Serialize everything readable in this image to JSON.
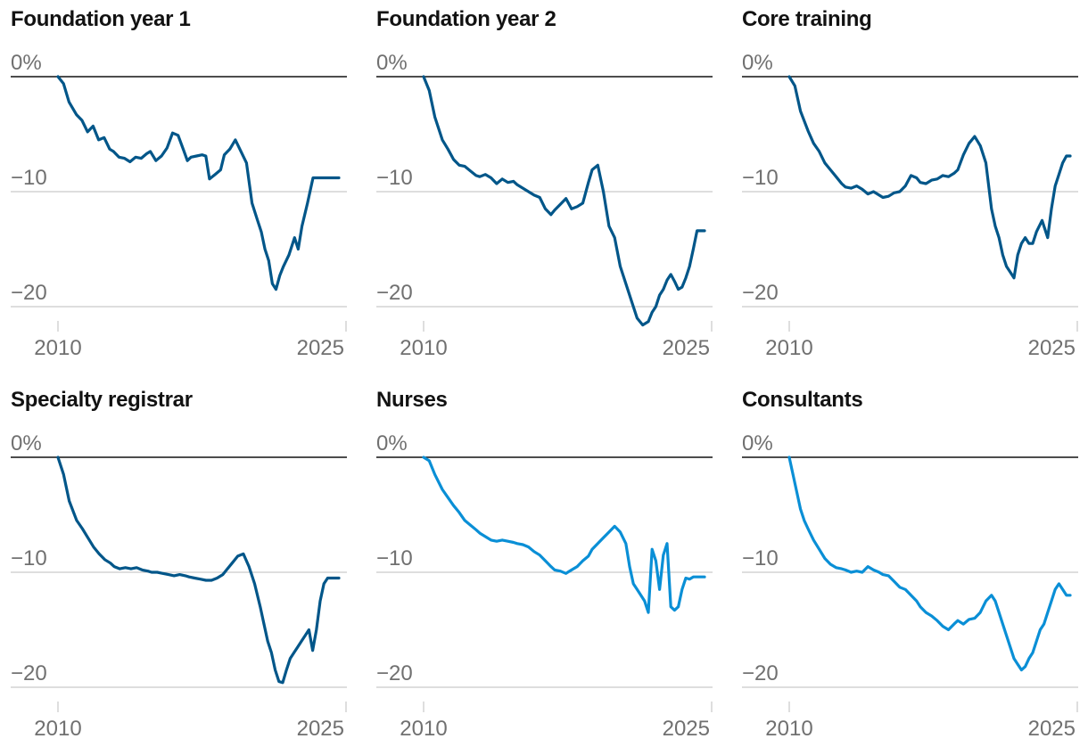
{
  "colors": {
    "dark": "#005689",
    "light": "#0a8fd6",
    "grid": "#bdbdbd",
    "zero": "#121212",
    "text": "#707070",
    "title": "#121212"
  },
  "chart_data": [
    {
      "type": "line",
      "title": "Foundation year 1",
      "color": "dark",
      "ylim": [
        -22,
        0
      ],
      "y_ticks": [
        {
          "v": 0,
          "label": "0%"
        },
        {
          "v": -10,
          "label": "−10"
        },
        {
          "v": -20,
          "label": "−20"
        }
      ],
      "x_ticks": [
        {
          "v": 2010,
          "label": "2010"
        },
        {
          "v": 2025,
          "label": "2025"
        }
      ],
      "xlim": [
        2010,
        2025.3
      ],
      "x": [
        2010.0,
        2010.3,
        2010.6,
        2011.0,
        2011.3,
        2011.6,
        2011.9,
        2012.2,
        2012.5,
        2012.8,
        2013.0,
        2013.3,
        2013.6,
        2013.9,
        2014.2,
        2014.5,
        2014.8,
        2015.0,
        2015.3,
        2015.6,
        2015.9,
        2016.2,
        2016.5,
        2016.8,
        2017.0,
        2017.2,
        2017.5,
        2017.8,
        2018.0,
        2018.2,
        2018.5,
        2018.8,
        2019.0,
        2019.3,
        2019.6,
        2019.9,
        2020.2,
        2020.5,
        2020.8,
        2021.0,
        2021.2,
        2021.4,
        2021.6,
        2021.8,
        2022.0,
        2022.2,
        2022.5,
        2022.8,
        2023.0,
        2023.2,
        2023.5,
        2023.8,
        2024.0,
        2024.2,
        2024.4,
        2024.6,
        2024.8,
        2025.0,
        2025.2
      ],
      "values": [
        0,
        -0.6,
        -2.2,
        -3.3,
        -3.8,
        -4.8,
        -4.3,
        -5.5,
        -5.3,
        -6.3,
        -6.5,
        -7.0,
        -7.1,
        -7.4,
        -7.0,
        -7.1,
        -6.7,
        -6.5,
        -7.3,
        -6.9,
        -6.2,
        -4.9,
        -5.1,
        -6.4,
        -7.3,
        -7.0,
        -6.9,
        -6.8,
        -6.9,
        -8.9,
        -8.5,
        -8.1,
        -6.8,
        -6.3,
        -5.5,
        -6.5,
        -7.5,
        -11.0,
        -12.5,
        -13.5,
        -15.0,
        -16.0,
        -18.0,
        -18.5,
        -17.3,
        -16.5,
        -15.5,
        -14.0,
        -15.0,
        -13.0,
        -11.0,
        -8.8,
        -8.8,
        -8.8,
        -8.8,
        -8.8,
        -8.8,
        -8.8,
        -8.8
      ]
    },
    {
      "type": "line",
      "title": "Foundation year 2",
      "color": "dark",
      "ylim": [
        -22,
        0
      ],
      "y_ticks": [
        {
          "v": 0,
          "label": "0%"
        },
        {
          "v": -10,
          "label": "−10"
        },
        {
          "v": -20,
          "label": "−20"
        }
      ],
      "x_ticks": [
        {
          "v": 2010,
          "label": "2010"
        },
        {
          "v": 2025,
          "label": "2025"
        }
      ],
      "xlim": [
        2010,
        2025.3
      ],
      "x": [
        2010.0,
        2010.3,
        2010.6,
        2011.0,
        2011.3,
        2011.6,
        2011.9,
        2012.2,
        2012.5,
        2012.8,
        2013.0,
        2013.3,
        2013.6,
        2013.9,
        2014.2,
        2014.5,
        2014.8,
        2015.0,
        2015.3,
        2015.6,
        2015.9,
        2016.2,
        2016.5,
        2016.8,
        2017.0,
        2017.3,
        2017.6,
        2017.9,
        2018.2,
        2018.5,
        2018.8,
        2019.0,
        2019.3,
        2019.6,
        2019.9,
        2020.2,
        2020.5,
        2020.8,
        2021.1,
        2021.4,
        2021.7,
        2022.0,
        2022.2,
        2022.4,
        2022.6,
        2022.8,
        2023.0,
        2023.2,
        2023.4,
        2023.6,
        2023.8,
        2024.0,
        2024.2,
        2024.4,
        2024.6,
        2024.8,
        2025.0
      ],
      "values": [
        0,
        -1.2,
        -3.5,
        -5.5,
        -6.3,
        -7.2,
        -7.7,
        -7.8,
        -8.2,
        -8.6,
        -8.7,
        -8.5,
        -8.8,
        -9.3,
        -8.9,
        -9.2,
        -9.1,
        -9.4,
        -9.7,
        -10.0,
        -10.3,
        -10.5,
        -11.5,
        -12.0,
        -11.6,
        -11.1,
        -10.6,
        -11.5,
        -11.3,
        -11.0,
        -9.2,
        -8.1,
        -7.7,
        -10.0,
        -13.0,
        -14.0,
        -16.5,
        -18.0,
        -19.5,
        -21.0,
        -21.6,
        -21.3,
        -20.5,
        -20.0,
        -19.0,
        -18.5,
        -17.7,
        -17.2,
        -17.8,
        -18.5,
        -18.3,
        -17.5,
        -16.5,
        -15.0,
        -13.4,
        -13.4,
        -13.4
      ]
    },
    {
      "type": "line",
      "title": "Core training",
      "color": "dark",
      "ylim": [
        -22,
        0
      ],
      "y_ticks": [
        {
          "v": 0,
          "label": "0%"
        },
        {
          "v": -10,
          "label": "−10"
        },
        {
          "v": -20,
          "label": "−20"
        }
      ],
      "x_ticks": [
        {
          "v": 2010,
          "label": "2010"
        },
        {
          "v": 2025,
          "label": "2025"
        }
      ],
      "xlim": [
        2010,
        2025.3
      ],
      "x": [
        2010.0,
        2010.3,
        2010.6,
        2011.0,
        2011.3,
        2011.6,
        2011.9,
        2012.2,
        2012.5,
        2012.8,
        2013.0,
        2013.3,
        2013.6,
        2013.9,
        2014.2,
        2014.5,
        2014.8,
        2015.0,
        2015.3,
        2015.6,
        2015.9,
        2016.2,
        2016.5,
        2016.8,
        2017.0,
        2017.3,
        2017.6,
        2017.9,
        2018.2,
        2018.5,
        2018.8,
        2019.0,
        2019.3,
        2019.6,
        2019.9,
        2020.2,
        2020.5,
        2020.8,
        2021.0,
        2021.2,
        2021.4,
        2021.6,
        2021.8,
        2022.0,
        2022.2,
        2022.4,
        2022.6,
        2022.8,
        2023.0,
        2023.2,
        2023.5,
        2023.8,
        2024.0,
        2024.2,
        2024.4,
        2024.6,
        2024.8,
        2025.0
      ],
      "values": [
        0,
        -0.8,
        -3.0,
        -4.7,
        -5.8,
        -6.5,
        -7.5,
        -8.1,
        -8.7,
        -9.3,
        -9.6,
        -9.7,
        -9.5,
        -9.8,
        -10.2,
        -10.0,
        -10.3,
        -10.5,
        -10.4,
        -10.1,
        -10.0,
        -9.5,
        -8.6,
        -8.8,
        -9.2,
        -9.3,
        -9.0,
        -8.9,
        -8.6,
        -8.7,
        -8.4,
        -8.1,
        -6.8,
        -5.8,
        -5.2,
        -6.0,
        -7.5,
        -11.5,
        -13.0,
        -14.0,
        -15.5,
        -16.5,
        -17.0,
        -17.5,
        -15.5,
        -14.5,
        -14.0,
        -14.5,
        -14.5,
        -13.5,
        -12.5,
        -14.0,
        -11.5,
        -9.5,
        -8.5,
        -7.5,
        -6.9,
        -6.9
      ]
    },
    {
      "type": "line",
      "title": "Specialty registrar",
      "color": "dark",
      "ylim": [
        -22,
        0
      ],
      "y_ticks": [
        {
          "v": 0,
          "label": "0%"
        },
        {
          "v": -10,
          "label": "−10"
        },
        {
          "v": -20,
          "label": "−20"
        }
      ],
      "x_ticks": [
        {
          "v": 2010,
          "label": "2010"
        },
        {
          "v": 2025,
          "label": "2025"
        }
      ],
      "xlim": [
        2010,
        2025.3
      ],
      "x": [
        2010.0,
        2010.3,
        2010.6,
        2011.0,
        2011.3,
        2011.6,
        2011.9,
        2012.2,
        2012.5,
        2012.8,
        2013.0,
        2013.3,
        2013.6,
        2013.9,
        2014.2,
        2014.5,
        2014.8,
        2015.0,
        2015.3,
        2015.6,
        2015.9,
        2016.2,
        2016.5,
        2016.8,
        2017.0,
        2017.3,
        2017.6,
        2017.9,
        2018.2,
        2018.5,
        2018.8,
        2019.0,
        2019.3,
        2019.6,
        2019.9,
        2020.2,
        2020.5,
        2020.8,
        2021.0,
        2021.2,
        2021.4,
        2021.6,
        2021.8,
        2022.0,
        2022.2,
        2022.4,
        2022.6,
        2022.8,
        2023.0,
        2023.2,
        2023.4,
        2023.6,
        2023.8,
        2024.0,
        2024.2,
        2024.4,
        2024.6,
        2024.8,
        2025.0
      ],
      "values": [
        0,
        -1.5,
        -3.8,
        -5.5,
        -6.2,
        -7.0,
        -7.8,
        -8.4,
        -8.9,
        -9.2,
        -9.5,
        -9.7,
        -9.6,
        -9.7,
        -9.6,
        -9.8,
        -9.9,
        -10.0,
        -10.0,
        -10.1,
        -10.2,
        -10.3,
        -10.2,
        -10.3,
        -10.4,
        -10.5,
        -10.6,
        -10.7,
        -10.7,
        -10.5,
        -10.2,
        -9.8,
        -9.2,
        -8.6,
        -8.4,
        -9.5,
        -11.0,
        -13.0,
        -14.5,
        -16.0,
        -17.0,
        -18.5,
        -19.5,
        -19.6,
        -18.5,
        -17.5,
        -17.0,
        -16.5,
        -16.0,
        -15.5,
        -15.0,
        -16.8,
        -15.0,
        -12.5,
        -11.0,
        -10.5,
        -10.5,
        -10.5,
        -10.5
      ]
    },
    {
      "type": "line",
      "title": "Nurses",
      "color": "light",
      "ylim": [
        -22,
        0
      ],
      "y_ticks": [
        {
          "v": 0,
          "label": "0%"
        },
        {
          "v": -10,
          "label": "−10"
        },
        {
          "v": -20,
          "label": "−20"
        }
      ],
      "x_ticks": [
        {
          "v": 2010,
          "label": "2010"
        },
        {
          "v": 2025,
          "label": "2025"
        }
      ],
      "xlim": [
        2010,
        2025.3
      ],
      "x": [
        2010.0,
        2010.3,
        2010.6,
        2011.0,
        2011.3,
        2011.6,
        2011.9,
        2012.2,
        2012.5,
        2012.8,
        2013.0,
        2013.3,
        2013.6,
        2013.9,
        2014.2,
        2014.5,
        2014.8,
        2015.0,
        2015.3,
        2015.6,
        2015.9,
        2016.2,
        2016.5,
        2016.8,
        2017.0,
        2017.3,
        2017.6,
        2017.9,
        2018.2,
        2018.5,
        2018.8,
        2019.0,
        2019.3,
        2019.6,
        2019.9,
        2020.2,
        2020.5,
        2020.8,
        2021.0,
        2021.2,
        2021.4,
        2021.6,
        2021.8,
        2022.0,
        2022.2,
        2022.4,
        2022.6,
        2022.8,
        2023.0,
        2023.2,
        2023.4,
        2023.6,
        2023.8,
        2024.0,
        2024.2,
        2024.4,
        2024.6,
        2024.8,
        2025.0
      ],
      "values": [
        0,
        -0.3,
        -1.5,
        -2.8,
        -3.5,
        -4.2,
        -4.8,
        -5.5,
        -5.9,
        -6.3,
        -6.6,
        -6.9,
        -7.2,
        -7.3,
        -7.2,
        -7.3,
        -7.4,
        -7.5,
        -7.6,
        -7.8,
        -8.2,
        -8.5,
        -9.0,
        -9.5,
        -9.8,
        -9.9,
        -10.1,
        -9.8,
        -9.5,
        -9.0,
        -8.6,
        -8.0,
        -7.5,
        -7.0,
        -6.5,
        -6.0,
        -6.5,
        -7.5,
        -9.5,
        -11.0,
        -11.5,
        -12.0,
        -12.5,
        -13.5,
        -8.0,
        -9.0,
        -11.5,
        -8.5,
        -7.5,
        -13.0,
        -13.3,
        -13.0,
        -11.5,
        -10.5,
        -10.6,
        -10.4,
        -10.4,
        -10.4,
        -10.4
      ]
    },
    {
      "type": "line",
      "title": "Consultants",
      "color": "light",
      "ylim": [
        -22,
        0
      ],
      "y_ticks": [
        {
          "v": 0,
          "label": "0%"
        },
        {
          "v": -10,
          "label": "−10"
        },
        {
          "v": -20,
          "label": "−20"
        }
      ],
      "x_ticks": [
        {
          "v": 2010,
          "label": "2010"
        },
        {
          "v": 2025,
          "label": "2025"
        }
      ],
      "xlim": [
        2010,
        2025.3
      ],
      "x": [
        2010.0,
        2010.2,
        2010.4,
        2010.6,
        2010.8,
        2011.0,
        2011.3,
        2011.6,
        2011.9,
        2012.2,
        2012.5,
        2012.8,
        2013.0,
        2013.3,
        2013.6,
        2013.9,
        2014.2,
        2014.5,
        2014.8,
        2015.0,
        2015.3,
        2015.6,
        2015.9,
        2016.2,
        2016.5,
        2016.8,
        2017.0,
        2017.3,
        2017.6,
        2017.9,
        2018.2,
        2018.5,
        2018.8,
        2019.0,
        2019.3,
        2019.6,
        2019.9,
        2020.2,
        2020.5,
        2020.8,
        2021.0,
        2021.2,
        2021.4,
        2021.6,
        2021.8,
        2022.0,
        2022.2,
        2022.4,
        2022.6,
        2022.8,
        2023.0,
        2023.2,
        2023.4,
        2023.6,
        2023.8,
        2024.0,
        2024.2,
        2024.4,
        2024.6,
        2024.8,
        2025.0
      ],
      "values": [
        0,
        -1.5,
        -3.0,
        -4.5,
        -5.5,
        -6.2,
        -7.2,
        -8.0,
        -8.8,
        -9.3,
        -9.6,
        -9.7,
        -9.8,
        -10.0,
        -9.9,
        -10.0,
        -9.5,
        -9.8,
        -10.0,
        -10.2,
        -10.3,
        -10.8,
        -11.3,
        -11.5,
        -12.0,
        -12.5,
        -13.0,
        -13.5,
        -13.8,
        -14.2,
        -14.7,
        -15.0,
        -14.5,
        -14.2,
        -14.5,
        -14.1,
        -14.0,
        -13.5,
        -12.5,
        -12.0,
        -12.5,
        -13.5,
        -14.5,
        -15.5,
        -16.5,
        -17.5,
        -18.0,
        -18.5,
        -18.2,
        -17.5,
        -17.0,
        -16.0,
        -15.0,
        -14.5,
        -13.5,
        -12.5,
        -11.5,
        -11.0,
        -11.5,
        -12.0,
        -12.0
      ]
    }
  ]
}
